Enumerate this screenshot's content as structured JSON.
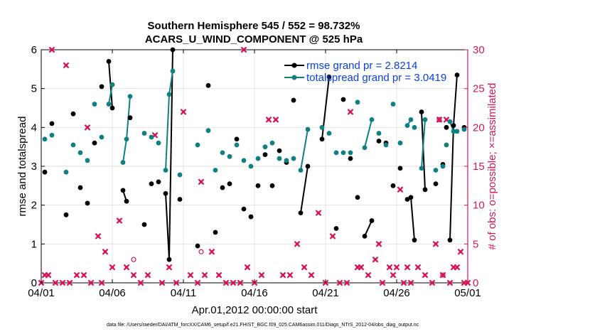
{
  "chart_data": {
    "type": "scatter",
    "title": "Southern Hemisphere 545 / 552 = 98.732%",
    "subtitle": "ACARS_U_WIND_COMPONENT @ 525 hPa",
    "xlabel": "Apr.01,2012 00:00:00 start",
    "ylabel": "rmse and totalspread",
    "y2label": "# of obs: o=possible; ×=assimilated",
    "xlim": [
      0,
      30
    ],
    "ylim": [
      0,
      6
    ],
    "y2lim": [
      0,
      30
    ],
    "x_ticks": [
      0,
      5,
      10,
      15,
      20,
      25,
      30
    ],
    "x_tick_labels": [
      "04/01",
      "04/06",
      "04/11",
      "04/16",
      "04/21",
      "04/26",
      "05/01"
    ],
    "y_ticks": [
      0,
      1,
      2,
      3,
      4,
      5,
      6
    ],
    "y2_ticks": [
      0,
      5,
      10,
      15,
      20,
      25,
      30
    ],
    "grid": true,
    "legend_position": "top-right",
    "footnote": "data file: /Users/raeder/DAI/ATM_forcXX/CAM6_setup/f.e21.FHIST_BGC.f09_025.CAM6assim.011/Diags_NTrS_2012-04/obs_diag_output.nc",
    "colors": {
      "rmse": "#000000",
      "spread": "#0e8080",
      "obs": "#d6155a",
      "legend_text": "#0a40e0",
      "right_axis": "#d6155a"
    },
    "series": [
      {
        "name": "rmse grand pr = 2.8214",
        "axis": "left",
        "color": "#000000",
        "points": [
          [
            0.25,
            2.85
          ],
          [
            0.75,
            4.1
          ],
          [
            1.75,
            1.75
          ],
          [
            2.25,
            4.35
          ],
          [
            2.75,
            2.45
          ],
          [
            3.25,
            2.05
          ],
          [
            3.75,
            3.6
          ],
          [
            4.25,
            5.05
          ],
          [
            4.75,
            5.7
          ],
          [
            5.0,
            4.5
          ],
          [
            5.75,
            2.38
          ],
          [
            6.0,
            2.1
          ],
          [
            6.25,
            4.25
          ],
          [
            7.25,
            1.5
          ],
          [
            7.75,
            2.55
          ],
          [
            8.25,
            2.6
          ],
          [
            8.75,
            2.3
          ],
          [
            9.0,
            0.6
          ],
          [
            9.25,
            6.0
          ],
          [
            9.75,
            2.15
          ],
          [
            11.0,
            0.95
          ],
          [
            11.75,
            5.08
          ],
          [
            12.25,
            1.3
          ],
          [
            12.75,
            2.45
          ],
          [
            13.25,
            2.55
          ],
          [
            13.75,
            3.7
          ],
          [
            14.25,
            1.9
          ],
          [
            14.75,
            1.7
          ],
          [
            15.25,
            2.5
          ],
          [
            15.75,
            3.3
          ],
          [
            16.25,
            2.5
          ],
          [
            16.75,
            3.4
          ],
          [
            17.25,
            3.1
          ],
          [
            17.75,
            4.7
          ],
          [
            18.25,
            1.8
          ],
          [
            18.75,
            3.0
          ],
          [
            19.75,
            3.7
          ],
          [
            20.25,
            5.3
          ],
          [
            20.75,
            1.4
          ],
          [
            21.25,
            4.72
          ],
          [
            21.75,
            3.2
          ],
          [
            22.25,
            2.2
          ],
          [
            22.75,
            1.2
          ],
          [
            23.25,
            1.6
          ],
          [
            23.75,
            3.65
          ],
          [
            24.25,
            3.6
          ],
          [
            24.75,
            2.5
          ],
          [
            25.25,
            2.95
          ],
          [
            25.75,
            2.15
          ],
          [
            26.0,
            2.2
          ],
          [
            26.25,
            1.1
          ],
          [
            26.75,
            4.4
          ],
          [
            27.0,
            2.4
          ],
          [
            27.75,
            2.55
          ],
          [
            28.25,
            3.05
          ],
          [
            28.5,
            4.0
          ],
          [
            28.75,
            1.1
          ],
          [
            29.0,
            4.05
          ],
          [
            29.25,
            5.35
          ],
          [
            29.75,
            4.0
          ]
        ],
        "segments": [
          [
            4.75,
            5.0
          ],
          [
            5.75,
            6.0
          ],
          [
            8.75,
            9.0
          ],
          [
            9.0,
            9.25
          ],
          [
            18.25,
            18.75
          ],
          [
            19.75,
            20.25
          ],
          [
            22.75,
            23.25
          ],
          [
            25.75,
            26.0
          ],
          [
            26.0,
            26.25
          ],
          [
            26.75,
            27.0
          ],
          [
            28.75,
            29.0
          ],
          [
            29.0,
            29.25
          ]
        ]
      },
      {
        "name": "totalspread grand pr = 3.0419",
        "axis": "left",
        "color": "#0e8080",
        "points": [
          [
            0.25,
            3.7
          ],
          [
            0.75,
            3.8
          ],
          [
            1.75,
            2.85
          ],
          [
            2.25,
            3.55
          ],
          [
            2.75,
            3.35
          ],
          [
            3.25,
            3.15
          ],
          [
            3.75,
            4.6
          ],
          [
            4.25,
            3.75
          ],
          [
            4.75,
            4.6
          ],
          [
            5.0,
            5.1
          ],
          [
            5.75,
            3.1
          ],
          [
            6.0,
            3.7
          ],
          [
            6.25,
            4.8
          ],
          [
            7.25,
            3.85
          ],
          [
            7.75,
            3.75
          ],
          [
            8.25,
            3.6
          ],
          [
            8.75,
            2.9
          ],
          [
            9.0,
            4.85
          ],
          [
            9.25,
            5.45
          ],
          [
            9.75,
            2.78
          ],
          [
            11.0,
            3.55
          ],
          [
            11.75,
            3.92
          ],
          [
            12.25,
            2.9
          ],
          [
            12.75,
            3.35
          ],
          [
            13.25,
            3.25
          ],
          [
            13.75,
            3.55
          ],
          [
            14.25,
            3.15
          ],
          [
            14.75,
            3.0
          ],
          [
            15.25,
            3.2
          ],
          [
            15.75,
            3.5
          ],
          [
            16.25,
            3.6
          ],
          [
            16.75,
            3.2
          ],
          [
            17.25,
            3.15
          ],
          [
            17.75,
            3.2
          ],
          [
            18.25,
            2.9
          ],
          [
            18.75,
            3.95
          ],
          [
            19.75,
            4.0
          ],
          [
            20.25,
            3.85
          ],
          [
            20.75,
            3.35
          ],
          [
            21.25,
            3.35
          ],
          [
            21.75,
            3.35
          ],
          [
            22.25,
            4.65
          ],
          [
            22.75,
            3.48
          ],
          [
            23.25,
            4.2
          ],
          [
            23.75,
            3.85
          ],
          [
            24.25,
            3.55
          ],
          [
            24.75,
            4.6
          ],
          [
            25.25,
            3.6
          ],
          [
            25.75,
            4.05
          ],
          [
            26.0,
            4.2
          ],
          [
            26.25,
            4.0
          ],
          [
            26.75,
            2.95
          ],
          [
            27.0,
            4.2
          ],
          [
            27.75,
            2.9
          ],
          [
            28.25,
            3.0
          ],
          [
            28.5,
            3.55
          ],
          [
            28.75,
            4.15
          ],
          [
            29.0,
            3.9
          ],
          [
            29.25,
            3.9
          ],
          [
            29.75,
            3.95
          ]
        ],
        "segments": [
          [
            4.75,
            5.0
          ],
          [
            5.75,
            6.0
          ],
          [
            6.0,
            6.25
          ],
          [
            8.75,
            9.0
          ],
          [
            9.0,
            9.25
          ],
          [
            18.25,
            18.75
          ],
          [
            22.75,
            23.25
          ],
          [
            25.75,
            26.0
          ],
          [
            26.75,
            27.0
          ],
          [
            28.75,
            29.0
          ]
        ]
      },
      {
        "name": "possible",
        "axis": "right",
        "marker": "o",
        "color": "#d6155a",
        "points": [
          [
            0,
            0
          ],
          [
            0.25,
            1
          ],
          [
            0.5,
            1
          ],
          [
            0.75,
            30
          ],
          [
            1,
            0
          ],
          [
            1.5,
            0
          ],
          [
            1.75,
            28
          ],
          [
            2,
            0
          ],
          [
            2.5,
            1
          ],
          [
            3,
            1
          ],
          [
            3.25,
            20
          ],
          [
            3.5,
            0
          ],
          [
            4,
            6
          ],
          [
            4.25,
            0
          ],
          [
            4.5,
            4
          ],
          [
            5,
            2
          ],
          [
            5.5,
            8
          ],
          [
            6,
            2
          ],
          [
            6.5,
            1
          ],
          [
            7,
            0
          ],
          [
            7.5,
            1
          ],
          [
            8,
            19
          ],
          [
            8.5,
            0
          ],
          [
            9,
            2
          ],
          [
            9.5,
            0
          ],
          [
            10,
            22
          ],
          [
            10.5,
            1
          ],
          [
            11,
            0
          ],
          [
            11.25,
            13
          ],
          [
            11.5,
            1
          ],
          [
            12,
            4
          ],
          [
            12.5,
            1
          ],
          [
            13,
            0
          ],
          [
            13.5,
            0
          ],
          [
            14,
            0
          ],
          [
            14.25,
            30
          ],
          [
            14.5,
            2
          ],
          [
            15,
            0
          ],
          [
            15.5,
            1
          ],
          [
            16,
            21
          ],
          [
            16.5,
            21
          ],
          [
            17,
            1
          ],
          [
            17.5,
            1
          ],
          [
            18,
            5
          ],
          [
            18.5,
            2
          ],
          [
            19,
            1
          ],
          [
            19.5,
            9
          ],
          [
            20,
            0
          ],
          [
            20.5,
            6
          ],
          [
            21,
            0
          ],
          [
            21.5,
            0
          ],
          [
            21.75,
            22
          ],
          [
            22.25,
            2
          ],
          [
            22.5,
            2
          ],
          [
            23,
            1
          ],
          [
            23.5,
            3
          ],
          [
            23.75,
            5
          ],
          [
            24,
            0
          ],
          [
            24.5,
            2
          ],
          [
            24.75,
            1
          ],
          [
            25,
            2
          ],
          [
            25.25,
            12
          ],
          [
            25.5,
            0
          ],
          [
            25.75,
            2
          ],
          [
            26,
            0
          ],
          [
            26.5,
            2
          ],
          [
            27,
            1
          ],
          [
            27.5,
            0
          ],
          [
            27.75,
            5
          ],
          [
            28,
            21
          ],
          [
            28.25,
            1
          ],
          [
            28.5,
            21
          ],
          [
            28.75,
            0
          ],
          [
            29,
            2
          ],
          [
            29.25,
            2
          ],
          [
            29.5,
            4
          ],
          [
            29.75,
            0
          ],
          [
            30,
            0
          ]
        ]
      },
      {
        "name": "assimilated",
        "axis": "right",
        "marker": "x",
        "color": "#d6155a",
        "points": [
          [
            0,
            0
          ],
          [
            0.25,
            1
          ],
          [
            0.5,
            1
          ],
          [
            0.75,
            30
          ],
          [
            1,
            0
          ],
          [
            1.5,
            0
          ],
          [
            1.75,
            28
          ],
          [
            2,
            0
          ],
          [
            2.5,
            1
          ],
          [
            3,
            1
          ],
          [
            3.25,
            20
          ],
          [
            3.5,
            0
          ],
          [
            4,
            6
          ],
          [
            4.25,
            0
          ],
          [
            4.5,
            4
          ],
          [
            5,
            2
          ],
          [
            5.5,
            8
          ],
          [
            6,
            2
          ],
          [
            6.5,
            1
          ],
          [
            7,
            0
          ],
          [
            7.5,
            1
          ],
          [
            8,
            19
          ],
          [
            8.5,
            0
          ],
          [
            9,
            2
          ],
          [
            9.5,
            0
          ],
          [
            10,
            22
          ],
          [
            10.5,
            1
          ],
          [
            11,
            0
          ],
          [
            11.25,
            13
          ],
          [
            11.5,
            1
          ],
          [
            12,
            4
          ],
          [
            12.5,
            1
          ],
          [
            13,
            0
          ],
          [
            13.5,
            0
          ],
          [
            14,
            0
          ],
          [
            14.25,
            30
          ],
          [
            14.5,
            2
          ],
          [
            15,
            0
          ],
          [
            15.5,
            1
          ],
          [
            16,
            21
          ],
          [
            16.5,
            21
          ],
          [
            17,
            1
          ],
          [
            17.5,
            1
          ],
          [
            18,
            5
          ],
          [
            18.5,
            2
          ],
          [
            19,
            1
          ],
          [
            19.5,
            9
          ],
          [
            20,
            0
          ],
          [
            20.5,
            6
          ],
          [
            21,
            0
          ],
          [
            21.5,
            0
          ],
          [
            21.75,
            22
          ],
          [
            22.25,
            2
          ],
          [
            22.5,
            2
          ],
          [
            23,
            1
          ],
          [
            23.5,
            3
          ],
          [
            23.75,
            5
          ],
          [
            24,
            0
          ],
          [
            24.5,
            2
          ],
          [
            24.75,
            1
          ],
          [
            25,
            2
          ],
          [
            25.25,
            12
          ],
          [
            25.5,
            0
          ],
          [
            25.75,
            2
          ],
          [
            26,
            0
          ],
          [
            26.5,
            2
          ],
          [
            27,
            1
          ],
          [
            27.5,
            0
          ],
          [
            27.75,
            5
          ],
          [
            28,
            21
          ],
          [
            28.25,
            1
          ],
          [
            28.5,
            21
          ],
          [
            28.75,
            0
          ],
          [
            29,
            2
          ],
          [
            29.25,
            2
          ],
          [
            29.5,
            4
          ],
          [
            29.75,
            0
          ],
          [
            30,
            0
          ]
        ]
      }
    ],
    "possible_only_points": [
      [
        6.5,
        3
      ],
      [
        11.25,
        4
      ],
      [
        28,
        21
      ],
      [
        28.25,
        1
      ]
    ]
  }
}
